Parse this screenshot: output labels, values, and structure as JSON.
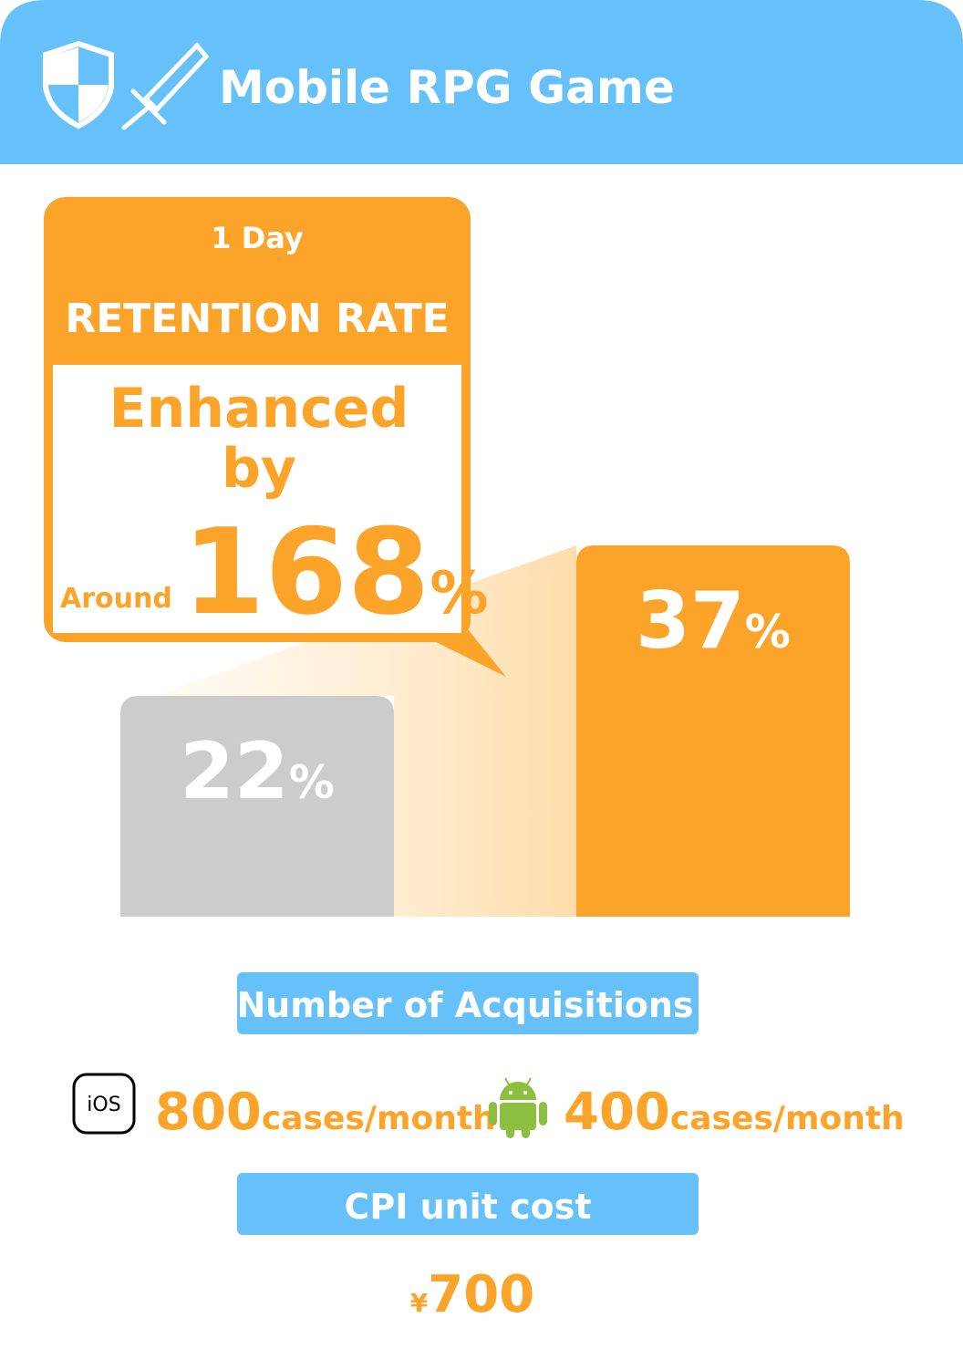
{
  "header": {
    "title": "Mobile RPG Game"
  },
  "callout": {
    "period": "1 Day",
    "metric": "RETENTION RATE",
    "enhanced": "Enhanced",
    "by": "by",
    "around": "Around",
    "increase": "168%"
  },
  "chart_data": {
    "type": "bar",
    "categories": [
      null,
      null
    ],
    "values": [
      22,
      37
    ],
    "value_labels": [
      "22%",
      "37%"
    ],
    "colors": [
      "#cccccc",
      "#fca32a"
    ]
  },
  "acquisitions": {
    "label": "Number of Acquisitions",
    "ios": {
      "icon": "iOS",
      "count": "800",
      "unit": "cases/month"
    },
    "android": {
      "count": "400",
      "unit": "cases/month"
    }
  },
  "cpi": {
    "label": "CPI unit cost",
    "value": "¥700"
  }
}
